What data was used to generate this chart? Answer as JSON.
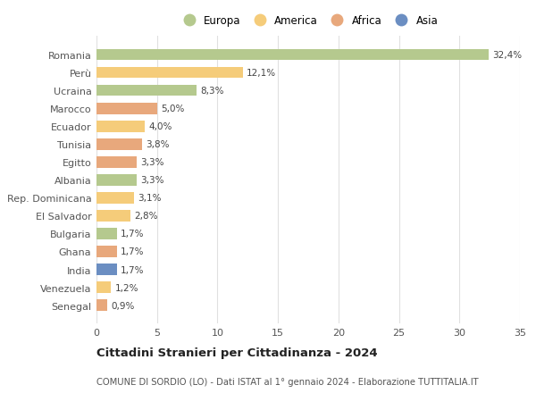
{
  "countries": [
    "Romania",
    "Perù",
    "Ucraina",
    "Marocco",
    "Ecuador",
    "Tunisia",
    "Egitto",
    "Albania",
    "Rep. Dominicana",
    "El Salvador",
    "Bulgaria",
    "Ghana",
    "India",
    "Venezuela",
    "Senegal"
  ],
  "values": [
    32.4,
    12.1,
    8.3,
    5.0,
    4.0,
    3.8,
    3.3,
    3.3,
    3.1,
    2.8,
    1.7,
    1.7,
    1.7,
    1.2,
    0.9
  ],
  "labels": [
    "32,4%",
    "12,1%",
    "8,3%",
    "5,0%",
    "4,0%",
    "3,8%",
    "3,3%",
    "3,3%",
    "3,1%",
    "2,8%",
    "1,7%",
    "1,7%",
    "1,7%",
    "1,2%",
    "0,9%"
  ],
  "continents": [
    "Europa",
    "America",
    "Europa",
    "Africa",
    "America",
    "Africa",
    "Africa",
    "Europa",
    "America",
    "America",
    "Europa",
    "Africa",
    "Asia",
    "America",
    "Africa"
  ],
  "colors": {
    "Europa": "#b5c98e",
    "America": "#f5cc7a",
    "Africa": "#e8a87c",
    "Asia": "#6b8ec2"
  },
  "legend_order": [
    "Europa",
    "America",
    "Africa",
    "Asia"
  ],
  "xlim": [
    0,
    35
  ],
  "xticks": [
    0,
    5,
    10,
    15,
    20,
    25,
    30,
    35
  ],
  "title": "Cittadini Stranieri per Cittadinanza - 2024",
  "subtitle": "COMUNE DI SORDIO (LO) - Dati ISTAT al 1° gennaio 2024 - Elaborazione TUTTITALIA.IT",
  "bg_color": "#ffffff",
  "grid_color": "#e0e0e0",
  "bar_height": 0.62,
  "label_fontsize": 7.5,
  "ytick_fontsize": 8.0,
  "xtick_fontsize": 8.0
}
